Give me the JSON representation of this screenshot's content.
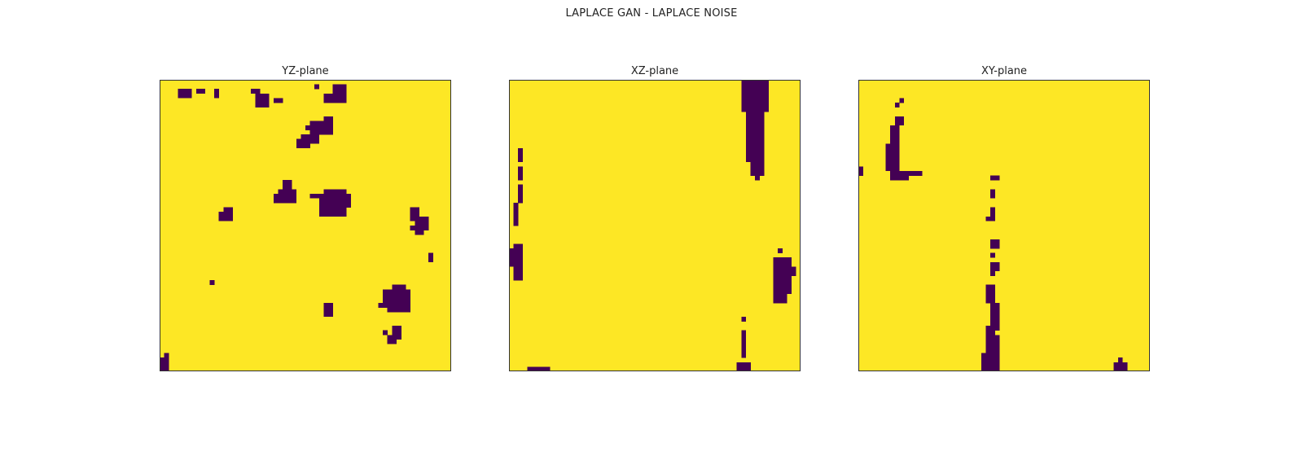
{
  "figure": {
    "title": "LAPLACE GAN - LAPLACE NOISE"
  },
  "colors": {
    "background_value": "#fde725",
    "foreground_value": "#440154",
    "frame": "#333333"
  },
  "chart_data": [
    {
      "type": "heatmap",
      "title": "YZ-plane",
      "grid_size": [
        64,
        64
      ],
      "values": {
        "background": 1,
        "foreground": 0
      },
      "blobs": [
        [
          4,
          2,
          3,
          2
        ],
        [
          8,
          2,
          2,
          1
        ],
        [
          12,
          2,
          1,
          1
        ],
        [
          20,
          2,
          2,
          1
        ],
        [
          34,
          1,
          1,
          1
        ],
        [
          38,
          1,
          3,
          4
        ],
        [
          36,
          3,
          2,
          2
        ],
        [
          21,
          3,
          3,
          3
        ],
        [
          12,
          3,
          1,
          1
        ],
        [
          25,
          4,
          2,
          1
        ],
        [
          40,
          1,
          1,
          1
        ],
        [
          33,
          9,
          3,
          3
        ],
        [
          36,
          8,
          2,
          4
        ],
        [
          31,
          12,
          4,
          2
        ],
        [
          30,
          13,
          2,
          2
        ],
        [
          32,
          14,
          1,
          1
        ],
        [
          32,
          10,
          1,
          1
        ],
        [
          27,
          22,
          2,
          3
        ],
        [
          26,
          24,
          4,
          3
        ],
        [
          25,
          25,
          2,
          2
        ],
        [
          28,
          26,
          1,
          1
        ],
        [
          35,
          25,
          7,
          3
        ],
        [
          36,
          24,
          5,
          2
        ],
        [
          35,
          27,
          6,
          3
        ],
        [
          37,
          29,
          3,
          1
        ],
        [
          33,
          25,
          2,
          1
        ],
        [
          14,
          28,
          2,
          3
        ],
        [
          13,
          29,
          1,
          2
        ],
        [
          55,
          28,
          2,
          3
        ],
        [
          56,
          30,
          3,
          3
        ],
        [
          55,
          32,
          1,
          1
        ],
        [
          56,
          33,
          2,
          1
        ],
        [
          59,
          38,
          1,
          2
        ],
        [
          11,
          44,
          1,
          1
        ],
        [
          49,
          46,
          6,
          3
        ],
        [
          51,
          45,
          3,
          1
        ],
        [
          50,
          48,
          5,
          3
        ],
        [
          49,
          49,
          1,
          1
        ],
        [
          48,
          49,
          1,
          1
        ],
        [
          36,
          49,
          2,
          3
        ],
        [
          37,
          50,
          1,
          1
        ],
        [
          51,
          54,
          2,
          3
        ],
        [
          50,
          56,
          2,
          2
        ],
        [
          49,
          55,
          1,
          1
        ],
        [
          0,
          61,
          2,
          3
        ],
        [
          1,
          60,
          1,
          1
        ]
      ]
    },
    {
      "type": "heatmap",
      "title": "XZ-plane",
      "grid_size": [
        64,
        64
      ],
      "values": {
        "background": 1,
        "foreground": 0
      },
      "blobs": [
        [
          51,
          0,
          6,
          7
        ],
        [
          52,
          7,
          4,
          11
        ],
        [
          53,
          18,
          3,
          3
        ],
        [
          54,
          21,
          1,
          1
        ],
        [
          2,
          15,
          1,
          3
        ],
        [
          2,
          19,
          1,
          3
        ],
        [
          2,
          23,
          1,
          4
        ],
        [
          1,
          27,
          1,
          5
        ],
        [
          1,
          36,
          2,
          8
        ],
        [
          0,
          37,
          1,
          4
        ],
        [
          2,
          43,
          1,
          1
        ],
        [
          59,
          37,
          1,
          1
        ],
        [
          58,
          39,
          4,
          8
        ],
        [
          61,
          41,
          2,
          2
        ],
        [
          58,
          47,
          3,
          2
        ],
        [
          51,
          52,
          1,
          1
        ],
        [
          51,
          55,
          1,
          3
        ],
        [
          51,
          58,
          1,
          3
        ],
        [
          50,
          62,
          3,
          2
        ],
        [
          4,
          63,
          5,
          1
        ]
      ]
    },
    {
      "type": "heatmap",
      "title": "XY-plane",
      "grid_size": [
        64,
        64
      ],
      "values": {
        "background": 1,
        "foreground": 0
      },
      "blobs": [
        [
          9,
          4,
          1,
          1
        ],
        [
          8,
          5,
          1,
          1
        ],
        [
          8,
          8,
          2,
          2
        ],
        [
          7,
          10,
          2,
          4
        ],
        [
          6,
          14,
          3,
          6
        ],
        [
          7,
          20,
          4,
          2
        ],
        [
          11,
          20,
          3,
          1
        ],
        [
          0,
          19,
          1,
          2
        ],
        [
          29,
          21,
          2,
          1
        ],
        [
          29,
          24,
          1,
          2
        ],
        [
          29,
          28,
          1,
          2
        ],
        [
          28,
          30,
          2,
          1
        ],
        [
          29,
          35,
          2,
          2
        ],
        [
          29,
          38,
          1,
          1
        ],
        [
          29,
          40,
          2,
          2
        ],
        [
          29,
          42,
          1,
          1
        ],
        [
          28,
          45,
          2,
          4
        ],
        [
          29,
          49,
          2,
          6
        ],
        [
          28,
          54,
          2,
          2
        ],
        [
          28,
          56,
          3,
          4
        ],
        [
          27,
          60,
          4,
          4
        ],
        [
          56,
          62,
          3,
          2
        ],
        [
          57,
          61,
          1,
          1
        ]
      ]
    }
  ]
}
